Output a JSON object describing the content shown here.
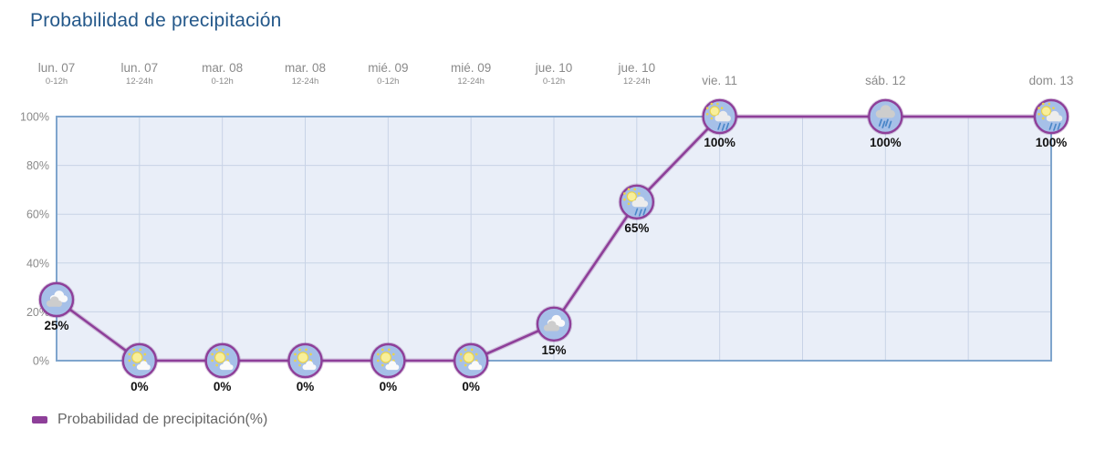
{
  "title": "Probabilidad de precipitación",
  "legend": {
    "label": "Probabilidad de precipitación(%)",
    "swatch_color": "#8e3f99"
  },
  "chart_data": {
    "type": "line",
    "title": "Probabilidad de precipitación",
    "series_name": "Probabilidad de precipitación(%)",
    "xlabel": "",
    "ylabel": "",
    "ylim": [
      0,
      100
    ],
    "grid": true,
    "legend_position": "bottom-left",
    "y_ticks": [
      0,
      20,
      40,
      60,
      80,
      100
    ],
    "y_tick_labels": [
      "0%",
      "20%",
      "40%",
      "60%",
      "80%",
      "100%"
    ],
    "x_units_total": 12,
    "categories": [
      {
        "label": "lun. 07",
        "sublabel": "0-12h",
        "x_unit": 0
      },
      {
        "label": "lun. 07",
        "sublabel": "12-24h",
        "x_unit": 1
      },
      {
        "label": "mar. 08",
        "sublabel": "0-12h",
        "x_unit": 2
      },
      {
        "label": "mar. 08",
        "sublabel": "12-24h",
        "x_unit": 3
      },
      {
        "label": "mié. 09",
        "sublabel": "0-12h",
        "x_unit": 4
      },
      {
        "label": "mié. 09",
        "sublabel": "12-24h",
        "x_unit": 5
      },
      {
        "label": "jue. 10",
        "sublabel": "0-12h",
        "x_unit": 6
      },
      {
        "label": "jue. 10",
        "sublabel": "12-24h",
        "x_unit": 7
      },
      {
        "label": "vie. 11",
        "sublabel": null,
        "x_unit": 8
      },
      {
        "label": "sáb. 12",
        "sublabel": null,
        "x_unit": 10
      },
      {
        "label": "dom. 13",
        "sublabel": null,
        "x_unit": 12
      }
    ],
    "values": [
      25,
      0,
      0,
      0,
      0,
      0,
      15,
      65,
      100,
      100,
      100
    ],
    "value_labels": [
      "25%",
      "0%",
      "0%",
      "0%",
      "0%",
      "0%",
      "15%",
      "65%",
      "100%",
      "100%",
      "100%"
    ],
    "icons": [
      "cloudy",
      "sun-cloud",
      "sun-cloud",
      "sun-cloud",
      "sun-cloud",
      "sun-cloud",
      "cloudy",
      "sun-rain",
      "sun-rain",
      "rain",
      "sun-rain"
    ],
    "colors": {
      "line": "#8e3f99",
      "line_halo": "#b48cc0",
      "icon_bg": "#a6c0e8",
      "plot_bg": "#e9eef8",
      "plot_border": "#7fa5cd",
      "grid": "#c8d3e6",
      "axis_text": "#8a8a8a",
      "value_text": "#111111",
      "sun": "#f8ef9a",
      "sun_edge": "#e9d34f",
      "rain": "#4a86c8",
      "cloud_white": "#fafafa",
      "cloud_gray": "#cdcdcd"
    }
  }
}
